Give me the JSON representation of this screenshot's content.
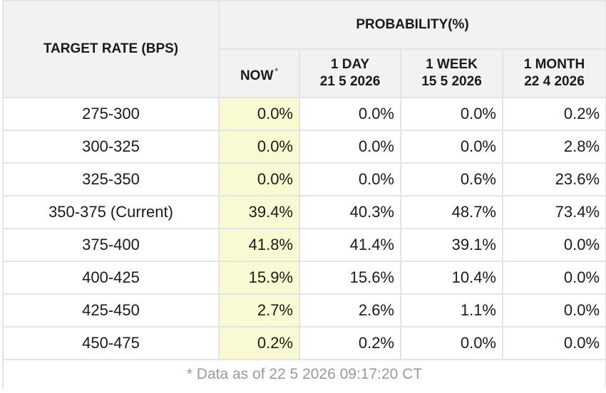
{
  "header": {
    "target_rate": "TARGET RATE (BPS)",
    "probability": "PROBABILITY(%)",
    "now": "NOW",
    "now_mark": "*",
    "day_label": "1 DAY",
    "day_date": "21 5 2026",
    "week_label": "1 WEEK",
    "week_date": "15 5 2026",
    "month_label": "1 MONTH",
    "month_date": "22 4 2026"
  },
  "rows": [
    {
      "rate": "275-300",
      "now": "0.0%",
      "day": "0.0%",
      "week": "0.0%",
      "month": "0.2%"
    },
    {
      "rate": "300-325",
      "now": "0.0%",
      "day": "0.0%",
      "week": "0.0%",
      "month": "2.8%"
    },
    {
      "rate": "325-350",
      "now": "0.0%",
      "day": "0.0%",
      "week": "0.6%",
      "month": "23.6%"
    },
    {
      "rate": "350-375 (Current)",
      "now": "39.4%",
      "day": "40.3%",
      "week": "48.7%",
      "month": "73.4%"
    },
    {
      "rate": "375-400",
      "now": "41.8%",
      "day": "41.4%",
      "week": "39.1%",
      "month": "0.0%"
    },
    {
      "rate": "400-425",
      "now": "15.9%",
      "day": "15.6%",
      "week": "10.4%",
      "month": "0.0%"
    },
    {
      "rate": "425-450",
      "now": "2.7%",
      "day": "2.6%",
      "week": "1.1%",
      "month": "0.0%"
    },
    {
      "rate": "450-475",
      "now": "0.2%",
      "day": "0.2%",
      "week": "0.0%",
      "month": "0.0%"
    }
  ],
  "footer": "* Data as of 22 5 2026 09:17:20 CT",
  "colors": {
    "header_bg": "#f2f2f2",
    "now_column_bg": "#fafad2",
    "border": "#e4e4e4",
    "footer_text": "#9a9a9a"
  }
}
